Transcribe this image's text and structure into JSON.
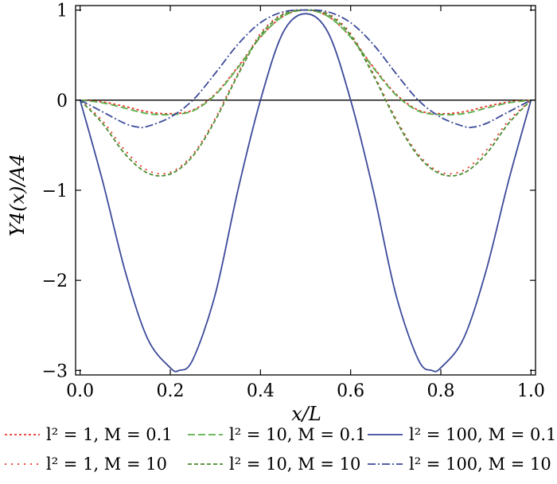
{
  "chart_data": {
    "type": "line",
    "xlabel": "x/L",
    "ylabel": "Y4(x)/A4",
    "xlim": [
      -0.01,
      1.01
    ],
    "ylim": [
      -3.05,
      1.05
    ],
    "xticks": [
      0.0,
      0.2,
      0.4,
      0.6,
      0.8,
      1.0
    ],
    "xtick_labels": [
      "0.0",
      "0.2",
      "0.4",
      "0.6",
      "0.8",
      "1.0"
    ],
    "yticks": [
      -3,
      -2,
      -1,
      0,
      1
    ],
    "ytick_labels": [
      "−3",
      "−2",
      "−1",
      "0",
      "1"
    ],
    "grid": false,
    "zero_line": true,
    "legend_position": "bottom",
    "series": [
      {
        "name": "l² = 1, M = 0.1",
        "color": "#e8362b",
        "dash": "3,3",
        "x": [
          0.0,
          0.05,
          0.1,
          0.15,
          0.2,
          0.25,
          0.3,
          0.35,
          0.4,
          0.45,
          0.5,
          0.55,
          0.6,
          0.65,
          0.7,
          0.75,
          0.8,
          0.85,
          0.9,
          0.95,
          1.0
        ],
        "values": [
          0.0,
          -0.02,
          -0.07,
          -0.13,
          -0.15,
          -0.11,
          0.07,
          0.37,
          0.7,
          0.93,
          1.0,
          0.93,
          0.7,
          0.37,
          0.07,
          -0.11,
          -0.15,
          -0.13,
          -0.07,
          -0.02,
          0.0
        ]
      },
      {
        "name": "l² = 1, M = 10",
        "color": "#e8362b",
        "dash": "2,6",
        "x": [
          0.0,
          0.05,
          0.1,
          0.15,
          0.2,
          0.25,
          0.3,
          0.35,
          0.4,
          0.45,
          0.5,
          0.55,
          0.6,
          0.65,
          0.7,
          0.75,
          0.8,
          0.85,
          0.9,
          0.95,
          1.0
        ],
        "values": [
          0.0,
          -0.23,
          -0.56,
          -0.78,
          -0.8,
          -0.6,
          -0.2,
          0.3,
          0.74,
          0.96,
          1.0,
          0.96,
          0.74,
          0.3,
          -0.2,
          -0.6,
          -0.8,
          -0.78,
          -0.56,
          -0.23,
          0.0
        ]
      },
      {
        "name": "l² = 10, M = 0.1",
        "color": "#5bb04a",
        "dash": "9,4",
        "x": [
          0.0,
          0.05,
          0.1,
          0.15,
          0.2,
          0.25,
          0.3,
          0.35,
          0.4,
          0.45,
          0.5,
          0.55,
          0.6,
          0.65,
          0.7,
          0.75,
          0.8,
          0.85,
          0.9,
          0.95,
          1.0
        ],
        "values": [
          0.0,
          -0.03,
          -0.09,
          -0.15,
          -0.16,
          -0.12,
          0.06,
          0.36,
          0.7,
          0.93,
          1.0,
          0.93,
          0.7,
          0.36,
          0.06,
          -0.12,
          -0.16,
          -0.15,
          -0.09,
          -0.03,
          0.0
        ]
      },
      {
        "name": "l² = 10, M = 10",
        "color": "#4a8a2e",
        "dash": "5,3",
        "x": [
          0.0,
          0.05,
          0.1,
          0.15,
          0.2,
          0.25,
          0.3,
          0.35,
          0.4,
          0.45,
          0.5,
          0.55,
          0.6,
          0.65,
          0.7,
          0.75,
          0.8,
          0.85,
          0.9,
          0.95,
          1.0
        ],
        "values": [
          0.0,
          -0.26,
          -0.6,
          -0.81,
          -0.82,
          -0.62,
          -0.22,
          0.28,
          0.72,
          0.95,
          1.0,
          0.95,
          0.72,
          0.28,
          -0.22,
          -0.62,
          -0.82,
          -0.81,
          -0.6,
          -0.26,
          0.0
        ]
      },
      {
        "name": "l² = 100, M = 0.1",
        "color": "#3c4a9a",
        "dash": "",
        "x": [
          0.0,
          0.05,
          0.1,
          0.15,
          0.2,
          0.22,
          0.25,
          0.3,
          0.35,
          0.4,
          0.45,
          0.5,
          0.55,
          0.6,
          0.65,
          0.7,
          0.75,
          0.78,
          0.8,
          0.85,
          0.9,
          0.95,
          1.0
        ],
        "values": [
          0.0,
          -0.9,
          -1.9,
          -2.65,
          -2.97,
          -3.0,
          -2.88,
          -2.15,
          -1.0,
          0.0,
          0.75,
          0.96,
          0.75,
          0.0,
          -1.0,
          -2.15,
          -2.88,
          -3.0,
          -2.97,
          -2.65,
          -1.9,
          -0.9,
          0.0
        ]
      },
      {
        "name": "l² = 100, M = 10",
        "color": "#3c4a9a",
        "dash": "10,3,2,3",
        "x": [
          0.0,
          0.05,
          0.1,
          0.13,
          0.15,
          0.2,
          0.25,
          0.3,
          0.35,
          0.4,
          0.45,
          0.5,
          0.55,
          0.6,
          0.65,
          0.7,
          0.75,
          0.8,
          0.85,
          0.87,
          0.9,
          0.95,
          1.0
        ],
        "values": [
          0.0,
          -0.13,
          -0.26,
          -0.3,
          -0.29,
          -0.19,
          0.0,
          0.3,
          0.62,
          0.86,
          0.98,
          1.0,
          0.98,
          0.86,
          0.62,
          0.3,
          0.0,
          -0.19,
          -0.29,
          -0.3,
          -0.26,
          -0.13,
          0.0
        ]
      }
    ]
  }
}
